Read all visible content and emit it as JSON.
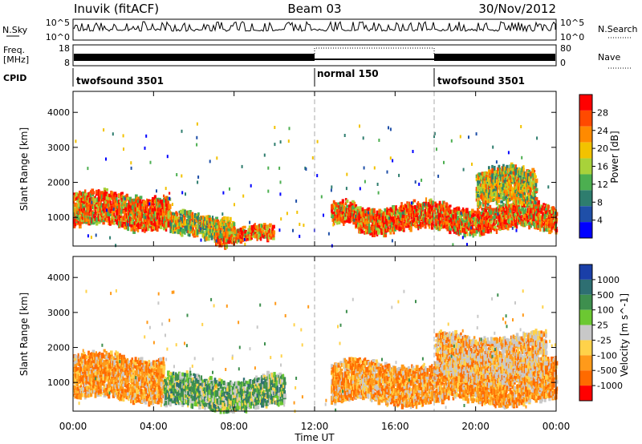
{
  "header": {
    "station": "Inuvik (fitACF)",
    "beam": "Beam 03",
    "date": "30/Nov/2012"
  },
  "strip_nsky": {
    "left_label": "N.Sky",
    "right_label": "N.Search",
    "left_ticks": [
      "10^5",
      "10^0"
    ],
    "right_ticks": [
      "10^5",
      "10^0"
    ]
  },
  "strip_freq": {
    "left_label_top": "Freq.",
    "left_label_bottom": "[MHz]",
    "right_label": "Nave",
    "left_ticks": [
      "18",
      "8"
    ],
    "right_ticks": [
      "80",
      "0"
    ]
  },
  "strip_cpid": {
    "label": "CPID",
    "segments": [
      {
        "name": "twofsound 3501",
        "start_hour": 0,
        "end_hour": 12
      },
      {
        "name": "normal 150",
        "start_hour": 12,
        "end_hour": 18
      },
      {
        "name": "twofsound 3501",
        "start_hour": 18,
        "end_hour": 24
      }
    ]
  },
  "time_axis": {
    "label": "Time UT",
    "ticks": [
      "00:00",
      "04:00",
      "08:00",
      "12:00",
      "16:00",
      "20:00",
      "00:00"
    ]
  },
  "colors": {
    "power_scale": [
      "#0000ff",
      "#1f4fa8",
      "#2e7d6e",
      "#4caf50",
      "#a8d23a",
      "#f2c200",
      "#ff8a00",
      "#ff4a00",
      "#ff0000"
    ],
    "velocity_scale": [
      "#1a3fa8",
      "#2e6f72",
      "#3e8f4e",
      "#6cc832",
      "#c8c8c8",
      "#ffd24a",
      "#ff9a1a",
      "#ff6a00",
      "#ff0000"
    ]
  },
  "chart_data": [
    {
      "type": "heatmap",
      "name": "power",
      "xlabel": "",
      "ylabel": "Slant Range [km]",
      "ylim": [
        180,
        4600
      ],
      "xlim_hours": [
        0,
        24
      ],
      "yticks": [
        "1000",
        "2000",
        "3000",
        "4000"
      ],
      "colorbar": {
        "label": "Power [dB]",
        "ticks": [
          "4",
          "8",
          "12",
          "16",
          "20",
          "24",
          "28"
        ]
      },
      "echo_bands": [
        {
          "start_hour": 0,
          "end_hour": 4.8,
          "min_km": 700,
          "max_km": 1700,
          "level": "strong"
        },
        {
          "start_hour": 4.8,
          "end_hour": 8,
          "min_km": 400,
          "max_km": 1100,
          "level": "medium"
        },
        {
          "start_hour": 7,
          "end_hour": 10,
          "min_km": 250,
          "max_km": 700,
          "level": "strong"
        },
        {
          "start_hour": 12.8,
          "end_hour": 14,
          "min_km": 700,
          "max_km": 1400,
          "level": "strong"
        },
        {
          "start_hour": 14,
          "end_hour": 24,
          "min_km": 600,
          "max_km": 1400,
          "level": "strong"
        },
        {
          "start_hour": 20,
          "end_hour": 23,
          "min_km": 1300,
          "max_km": 2400,
          "level": "medium"
        }
      ]
    },
    {
      "type": "heatmap",
      "name": "velocity",
      "xlabel": "Time UT",
      "ylabel": "Slant Range [km]",
      "ylim": [
        180,
        4600
      ],
      "xlim_hours": [
        0,
        24
      ],
      "yticks": [
        "1000",
        "2000",
        "3000",
        "4000"
      ],
      "colorbar": {
        "label": "Velocity [m s^-1]",
        "ticks": [
          "1000",
          "500",
          "100",
          "25",
          "-25",
          "-100",
          "-500",
          "-1000"
        ]
      },
      "echo_bands": [
        {
          "start_hour": 0,
          "end_hour": 4.5,
          "min_km": 500,
          "max_km": 1800,
          "level": "negative"
        },
        {
          "start_hour": 4.5,
          "end_hour": 10.5,
          "min_km": 250,
          "max_km": 1200,
          "level": "positive"
        },
        {
          "start_hour": 12.8,
          "end_hour": 24,
          "min_km": 400,
          "max_km": 1600,
          "level": "negative"
        },
        {
          "start_hour": 18,
          "end_hour": 23.5,
          "min_km": 1000,
          "max_km": 2400,
          "level": "mixed"
        }
      ]
    }
  ]
}
